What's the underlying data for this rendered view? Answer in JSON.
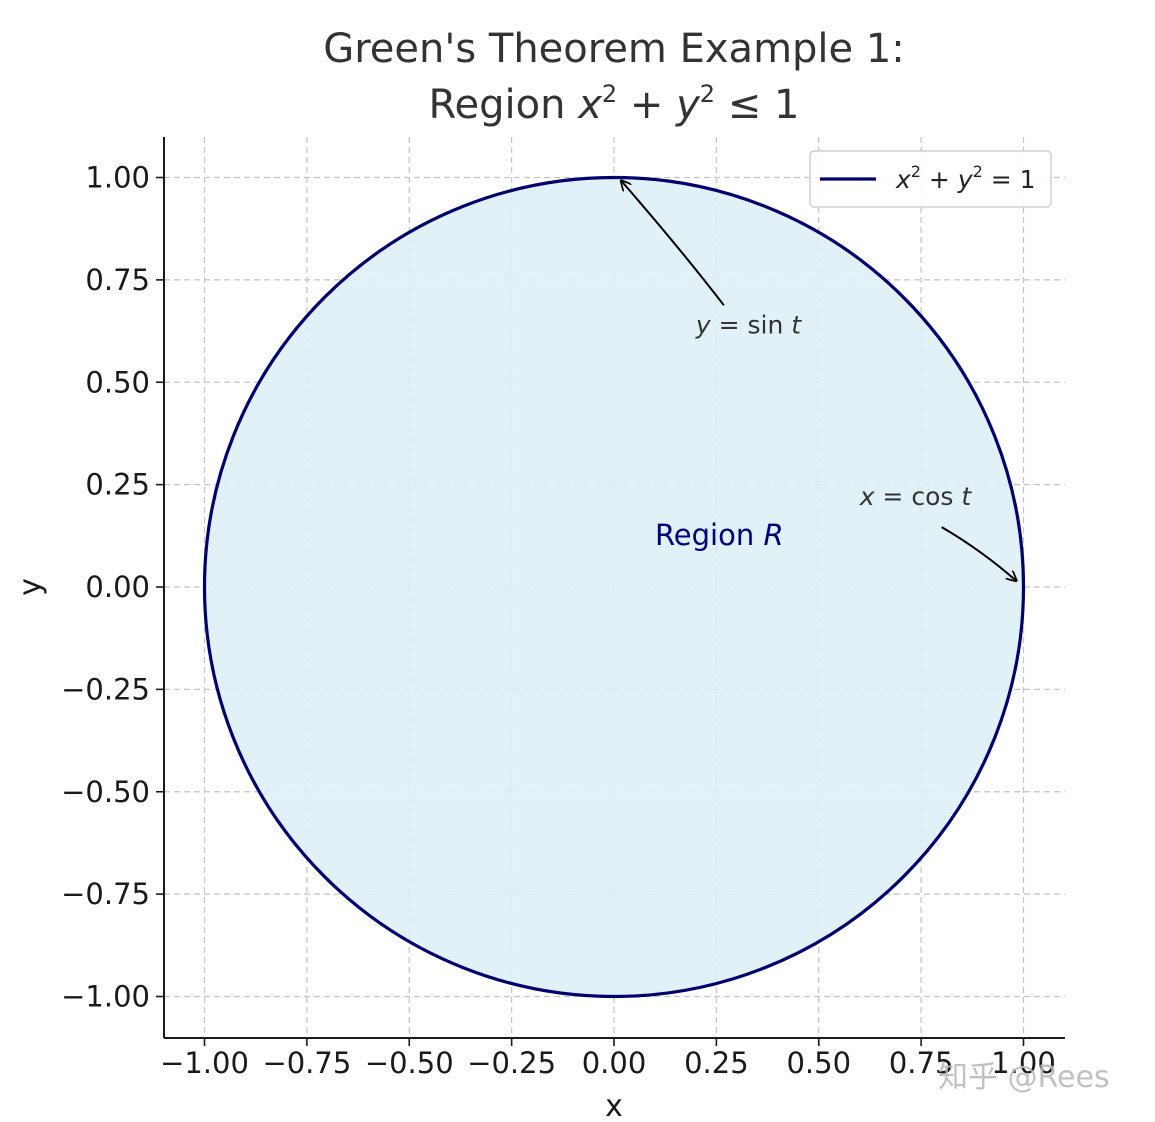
{
  "chart_data": {
    "type": "line",
    "title_line1": "Green's Theorem Example 1:",
    "title_line2": "Region x² + y² ≤ 1",
    "xlabel": "x",
    "ylabel": "y",
    "xlim": [
      -1.1,
      1.1
    ],
    "ylim": [
      -1.1,
      1.1
    ],
    "x_ticks": [
      -1.0,
      -0.75,
      -0.5,
      -0.25,
      0.0,
      0.25,
      0.5,
      0.75,
      1.0
    ],
    "y_ticks": [
      1.0,
      0.75,
      0.5,
      0.25,
      0.0,
      -0.25,
      -0.5,
      -0.75,
      -1.0
    ],
    "x_tick_labels": [
      "−1.00",
      "−0.75",
      "−0.50",
      "−0.25",
      "0.00",
      "0.25",
      "0.50",
      "0.75",
      "1.00"
    ],
    "y_tick_labels": [
      "1.00",
      "0.75",
      "0.50",
      "0.25",
      "0.00",
      "−0.25",
      "−0.50",
      "−0.75",
      "−1.00"
    ],
    "grid": true,
    "legend_position": "top-right",
    "series": [
      {
        "name": "x² + y² = 1",
        "shape": "circle",
        "center": [
          0,
          0
        ],
        "radius": 1,
        "color": "#00006e",
        "fill": "#ddeef6"
      }
    ],
    "annotations": [
      {
        "text": "y = sin t",
        "x": 0.2,
        "y": 0.6,
        "arrow_to": [
          0.01,
          0.99
        ]
      },
      {
        "text": "x = cos t",
        "x": 0.6,
        "y": 0.2,
        "arrow_to": [
          0.99,
          0.01
        ]
      }
    ],
    "region_label": {
      "text": "Region R",
      "x": 0.1,
      "y": 0.1,
      "color": "#00007f"
    }
  },
  "watermark": "知乎 @Rees"
}
